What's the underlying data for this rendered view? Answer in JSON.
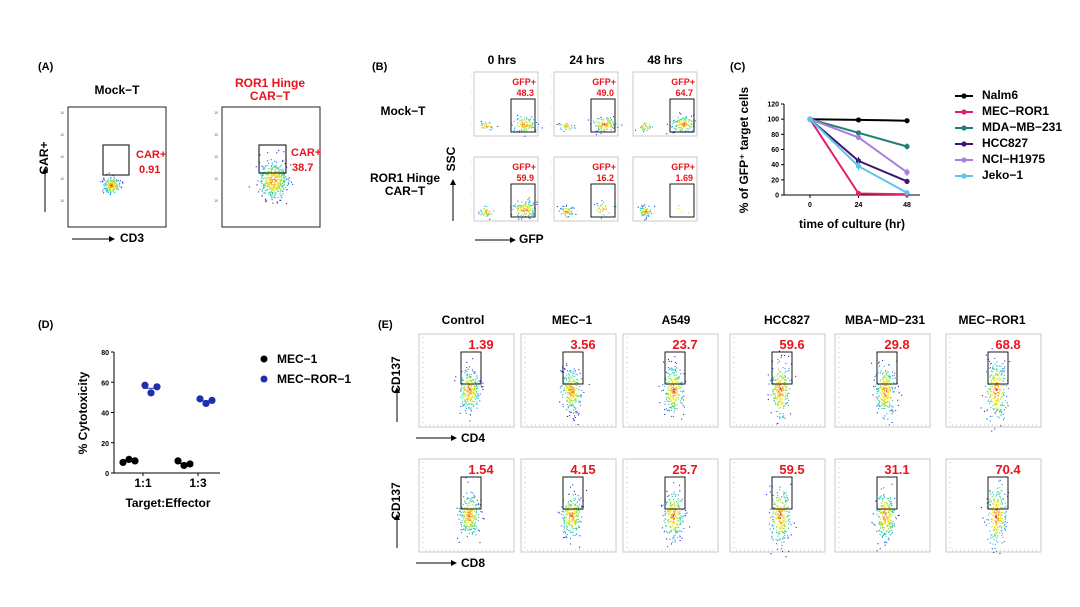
{
  "figure": {
    "panel_labels": [
      "(A)",
      "(B)",
      "(C)",
      "(D)",
      "(E)"
    ],
    "panel_a": {
      "titles": [
        "Mock−T",
        "ROR1 Hinge\nCAR−T"
      ],
      "gate_labels": [
        {
          "name": "CAR+",
          "value": "0.91"
        },
        {
          "name": "CAR+",
          "value": "38.7"
        }
      ],
      "xlabel": "CD3",
      "ylabel": "CAR+",
      "decade_labels": [
        "10",
        "10",
        "10",
        "10",
        "10"
      ]
    },
    "panel_b": {
      "time_headers": [
        "0 hrs",
        "24 hrs",
        "48 hrs"
      ],
      "row_labels": [
        "Mock−T",
        "ROR1 Hinge\nCAR−T"
      ],
      "gate_name": "GFP+",
      "values": [
        [
          "48.3",
          "49.0",
          "64.7"
        ],
        [
          "59.9",
          "16.2",
          "1.69"
        ]
      ],
      "xlabel": "GFP",
      "ylabel": "SSC"
    },
    "panel_d": {
      "legend": [
        {
          "name": "MEC−1",
          "color": "#000000"
        },
        {
          "name": "MEC−ROR−1",
          "color": "#1c2fb0"
        }
      ],
      "xlabel": "Target:Effector",
      "ylabel": "% Cytotoxicity"
    },
    "panel_e": {
      "column_titles": [
        "Control",
        "MEC−1",
        "A549",
        "HCC827",
        "MBA−MD−231",
        "MEC−ROR1"
      ],
      "row_values": [
        [
          "1.39",
          "3.56",
          "23.7",
          "59.6",
          "29.8",
          "68.8"
        ],
        [
          "1.54",
          "4.15",
          "25.7",
          "59.5",
          "31.1",
          "70.4"
        ]
      ],
      "row_xlabels": [
        "CD4",
        "CD8"
      ],
      "ylabel": "CD137"
    }
  },
  "chart_data": [
    {
      "type": "line",
      "panel": "C",
      "x": [
        0,
        24,
        48
      ],
      "xlabel": "time of culture (hr)",
      "ylabel": "% of GFP⁺ target cells",
      "ylim": [
        0,
        120
      ],
      "yticks": [
        0,
        20,
        40,
        60,
        80,
        100,
        120
      ],
      "xticks": [
        0,
        24,
        48
      ],
      "legend_position": "right",
      "series": [
        {
          "name": "Nalm6",
          "color": "#000000",
          "values": [
            100,
            99,
            98
          ],
          "err": [
            0,
            0,
            1
          ]
        },
        {
          "name": "MEC−ROR1",
          "color": "#e0206e",
          "values": [
            100,
            2,
            1
          ],
          "err": [
            0,
            1,
            0
          ]
        },
        {
          "name": "MDA−MB−231",
          "color": "#1f7f72",
          "values": [
            100,
            82,
            64
          ],
          "err": [
            0,
            2,
            4
          ]
        },
        {
          "name": "HCC827",
          "color": "#3e1772",
          "values": [
            100,
            45,
            18
          ],
          "err": [
            0,
            5,
            2
          ]
        },
        {
          "name": "NCI−H1975",
          "color": "#a97ee0",
          "values": [
            100,
            76,
            30
          ],
          "err": [
            0,
            3,
            5
          ]
        },
        {
          "name": "Jeko−1",
          "color": "#5fc5e8",
          "values": [
            100,
            38,
            3
          ],
          "err": [
            0,
            6,
            1
          ]
        }
      ]
    },
    {
      "type": "scatter",
      "panel": "D",
      "categories": [
        "1:1",
        "1:3"
      ],
      "ylim": [
        0,
        80
      ],
      "yticks": [
        0,
        20,
        40,
        60,
        80
      ],
      "series": [
        {
          "name": "MEC−1",
          "color": "#000000",
          "points": [
            [
              7,
              9,
              8
            ],
            [
              8,
              5,
              6
            ]
          ]
        },
        {
          "name": "MEC−ROR−1",
          "color": "#1c2fb0",
          "points": [
            [
              58,
              53,
              57
            ],
            [
              49,
              46,
              48
            ]
          ]
        }
      ],
      "xlabel": "Target:Effector",
      "ylabel": "% Cytotoxicity"
    }
  ]
}
